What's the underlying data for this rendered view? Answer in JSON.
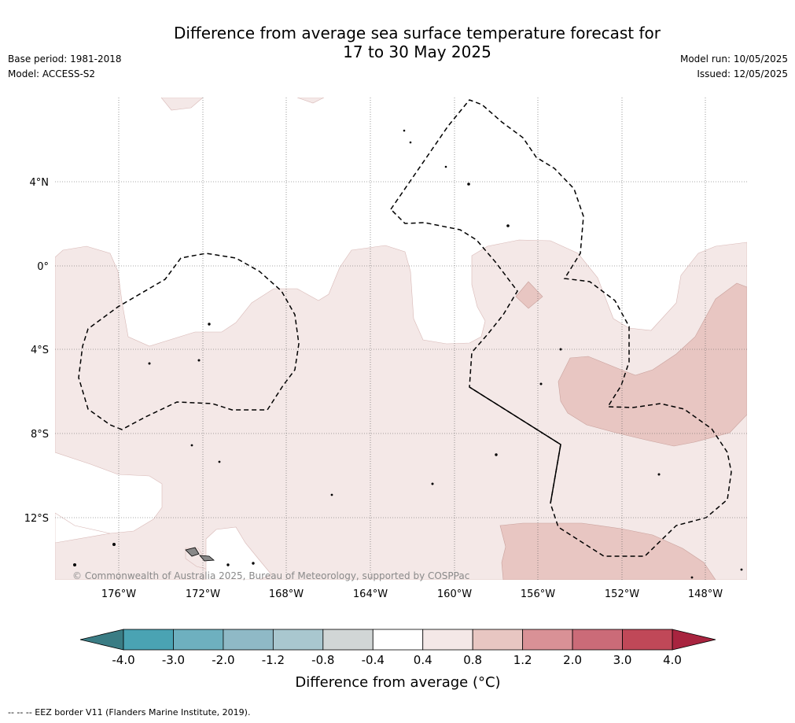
{
  "title_line1": "Difference from average sea surface temperature forecast for",
  "title_line2": "17 to 30 May 2025",
  "base_period": "Base period: 1981-2018",
  "model": "Model: ACCESS-S2",
  "model_run": "Model run: 10/05/2025",
  "issued": "Issued: 12/05/2025",
  "copyright": "© Commonwealth of Australia 2025, Bureau of Meteorology, supported by COSPPac",
  "lat_labels": [
    "4°N",
    "0°",
    "4°S",
    "8°S",
    "12°S"
  ],
  "lon_labels": [
    "176°W",
    "172°W",
    "168°W",
    "164°W",
    "160°W",
    "156°W",
    "152°W",
    "148°W"
  ],
  "colorbar": {
    "ticks": [
      "-4.0",
      "-3.0",
      "-2.0",
      "-1.2",
      "-0.8",
      "-0.4",
      "0.4",
      "0.8",
      "1.2",
      "2.0",
      "3.0",
      "4.0"
    ],
    "colors": [
      "#3a7c84",
      "#4aa3b3",
      "#6eb0bf",
      "#8fb9c6",
      "#a9c7cf",
      "#d1d6d6",
      "#ffffff",
      "#f4e8e7",
      "#e8c6c2",
      "#d99196",
      "#cb6b78",
      "#c04858",
      "#a8243f"
    ],
    "label": "Difference from average (°C)"
  },
  "legend_footer": "--  --  -- EEZ border V11 (Flanders Marine Institute, 2019).",
  "map_colors": {
    "band_0_4_0_8": "#f4e8e7",
    "band_0_8_1_2": "#e8c6c2"
  }
}
